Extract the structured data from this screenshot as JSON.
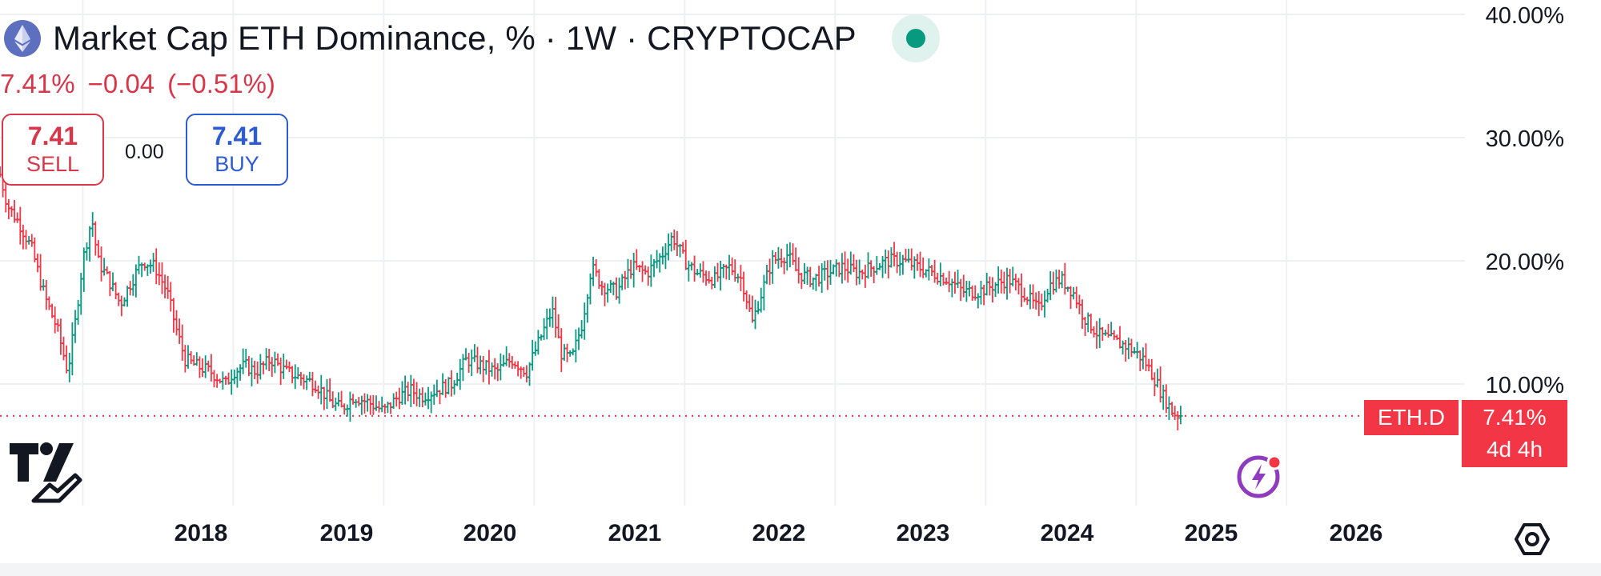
{
  "header": {
    "title": "Market Cap ETH Dominance, % · 1W · CRYPTOCAP",
    "status": "live"
  },
  "quote": {
    "last": "7.41%",
    "change": "−0.04",
    "change_percent": "(−0.51%)"
  },
  "trade": {
    "sell_price": "7.41",
    "sell_label": "SELL",
    "buy_price": "7.41",
    "buy_label": "BUY",
    "spread": "0.00"
  },
  "price_tag": {
    "symbol": "ETH.D",
    "value": "7.41%",
    "countdown": "4d 4h"
  },
  "colors": {
    "up": "#089981",
    "down": "#f23645",
    "sell": "#d9364a",
    "buy": "#2d5bd3",
    "grid": "#eef0f3"
  },
  "icons": {
    "logo": "tradingview-logo-icon",
    "symbol": "ethereum-logo-icon",
    "alert": "flash-alert-icon",
    "settings": "settings-icon"
  },
  "chart_data": {
    "type": "bar",
    "style": "ohlc-weekly",
    "interval": "1W",
    "x_start": 2017.45,
    "x_end": 2026.6,
    "y_range": [
      0,
      40
    ],
    "y_ticks": [
      {
        "value": 10,
        "label": "10.00%"
      },
      {
        "value": 20,
        "label": "20.00%"
      },
      {
        "value": 30,
        "label": "30.00%"
      },
      {
        "value": 40,
        "label": "40.00%"
      }
    ],
    "x_ticks": [
      {
        "value": 2018,
        "label": "2018"
      },
      {
        "value": 2019,
        "label": "2019"
      },
      {
        "value": 2020,
        "label": "2020"
      },
      {
        "value": 2021,
        "label": "2021"
      },
      {
        "value": 2022,
        "label": "2022"
      },
      {
        "value": 2023,
        "label": "2023"
      },
      {
        "value": 2024,
        "label": "2024"
      },
      {
        "value": 2025,
        "label": "2025"
      },
      {
        "value": 2026,
        "label": "2026"
      }
    ],
    "last_price": 7.41,
    "grid": true,
    "close_path": [
      [
        2017.45,
        27.0
      ],
      [
        2017.5,
        24.5
      ],
      [
        2017.58,
        23.0
      ],
      [
        2017.66,
        21.0
      ],
      [
        2017.75,
        17.0
      ],
      [
        2017.83,
        14.5
      ],
      [
        2017.9,
        11.0
      ],
      [
        2017.95,
        15.0
      ],
      [
        2018.0,
        20.0
      ],
      [
        2018.06,
        23.5
      ],
      [
        2018.1,
        20.0
      ],
      [
        2018.17,
        18.5
      ],
      [
        2018.25,
        16.5
      ],
      [
        2018.33,
        18.5
      ],
      [
        2018.4,
        20.0
      ],
      [
        2018.48,
        19.5
      ],
      [
        2018.56,
        17.5
      ],
      [
        2018.62,
        14.5
      ],
      [
        2018.68,
        12.0
      ],
      [
        2018.75,
        11.5
      ],
      [
        2018.85,
        11.0
      ],
      [
        2018.95,
        10.0
      ],
      [
        2019.0,
        11.0
      ],
      [
        2019.08,
        11.5
      ],
      [
        2019.15,
        11.0
      ],
      [
        2019.25,
        12.0
      ],
      [
        2019.35,
        11.0
      ],
      [
        2019.45,
        10.5
      ],
      [
        2019.55,
        10.0
      ],
      [
        2019.65,
        8.5
      ],
      [
        2019.72,
        8.0
      ],
      [
        2019.8,
        9.0
      ],
      [
        2019.9,
        8.5
      ],
      [
        2020.0,
        7.8
      ],
      [
        2020.1,
        9.0
      ],
      [
        2020.18,
        9.5
      ],
      [
        2020.25,
        9.0
      ],
      [
        2020.35,
        9.5
      ],
      [
        2020.45,
        10.0
      ],
      [
        2020.55,
        12.0
      ],
      [
        2020.65,
        11.5
      ],
      [
        2020.75,
        11.0
      ],
      [
        2020.85,
        12.0
      ],
      [
        2020.95,
        11.0
      ],
      [
        2021.05,
        14.0
      ],
      [
        2021.12,
        16.0
      ],
      [
        2021.18,
        12.5
      ],
      [
        2021.25,
        12.0
      ],
      [
        2021.32,
        15.0
      ],
      [
        2021.38,
        19.5
      ],
      [
        2021.45,
        18.0
      ],
      [
        2021.55,
        17.5
      ],
      [
        2021.65,
        19.5
      ],
      [
        2021.75,
        19.0
      ],
      [
        2021.85,
        20.5
      ],
      [
        2021.92,
        22.0
      ],
      [
        2022.0,
        20.0
      ],
      [
        2022.08,
        19.0
      ],
      [
        2022.2,
        18.5
      ],
      [
        2022.3,
        19.5
      ],
      [
        2022.38,
        18.5
      ],
      [
        2022.45,
        15.0
      ],
      [
        2022.5,
        17.0
      ],
      [
        2022.58,
        20.0
      ],
      [
        2022.68,
        20.5
      ],
      [
        2022.75,
        19.0
      ],
      [
        2022.85,
        18.5
      ],
      [
        2022.95,
        19.0
      ],
      [
        2023.05,
        19.5
      ],
      [
        2023.15,
        19.0
      ],
      [
        2023.25,
        19.5
      ],
      [
        2023.35,
        20.0
      ],
      [
        2023.45,
        20.0
      ],
      [
        2023.55,
        19.5
      ],
      [
        2023.65,
        19.0
      ],
      [
        2023.75,
        18.5
      ],
      [
        2023.85,
        17.5
      ],
      [
        2023.95,
        17.5
      ],
      [
        2024.05,
        18.0
      ],
      [
        2024.15,
        18.5
      ],
      [
        2024.25,
        17.5
      ],
      [
        2024.35,
        16.0
      ],
      [
        2024.42,
        18.0
      ],
      [
        2024.5,
        18.5
      ],
      [
        2024.58,
        17.5
      ],
      [
        2024.65,
        15.5
      ],
      [
        2024.75,
        14.0
      ],
      [
        2024.85,
        13.5
      ],
      [
        2024.95,
        13.0
      ],
      [
        2025.05,
        12.0
      ],
      [
        2025.12,
        10.5
      ],
      [
        2025.18,
        9.0
      ],
      [
        2025.25,
        7.6
      ],
      [
        2025.3,
        7.41
      ]
    ]
  }
}
